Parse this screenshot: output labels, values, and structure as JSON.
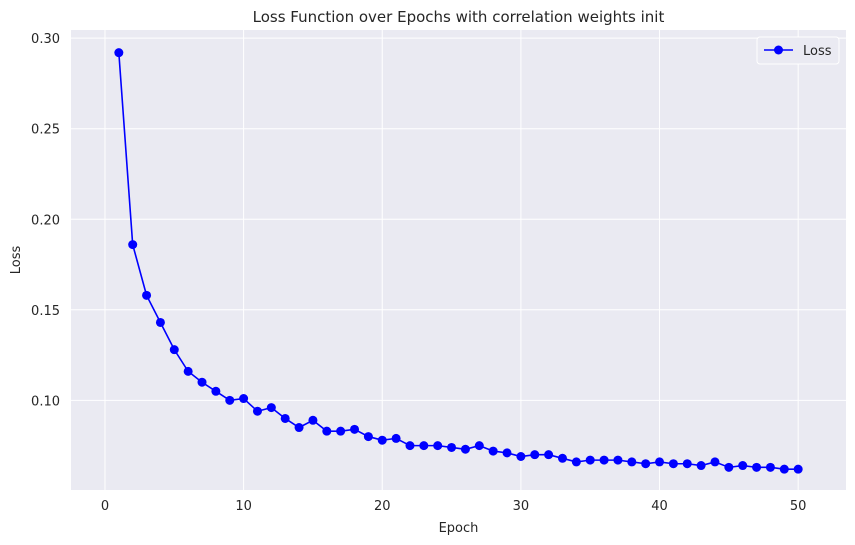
{
  "chart_data": {
    "type": "line",
    "title": "Loss Function over Epochs with correlation weights init",
    "xlabel": "Epoch",
    "ylabel": "Loss",
    "xlim": [
      -2.45,
      53.45
    ],
    "ylim": [
      0.0505,
      0.3045
    ],
    "xticks": [
      0,
      10,
      20,
      30,
      40,
      50
    ],
    "yticks": [
      0.1,
      0.15,
      0.2,
      0.25,
      0.3
    ],
    "ytick_labels": [
      "0.10",
      "0.15",
      "0.20",
      "0.25",
      "0.30"
    ],
    "grid": true,
    "legend_position": "top-right",
    "colors": {
      "line": "#0000ff",
      "background": "#eaeaf2",
      "grid": "#ffffff"
    },
    "series": [
      {
        "name": "Loss",
        "marker": "circle",
        "x": [
          1,
          2,
          3,
          4,
          5,
          6,
          7,
          8,
          9,
          10,
          11,
          12,
          13,
          14,
          15,
          16,
          17,
          18,
          19,
          20,
          21,
          22,
          23,
          24,
          25,
          26,
          27,
          28,
          29,
          30,
          31,
          32,
          33,
          34,
          35,
          36,
          37,
          38,
          39,
          40,
          41,
          42,
          43,
          44,
          45,
          46,
          47,
          48,
          49,
          50
        ],
        "values": [
          0.292,
          0.186,
          0.158,
          0.143,
          0.128,
          0.116,
          0.11,
          0.105,
          0.1,
          0.101,
          0.094,
          0.096,
          0.09,
          0.085,
          0.089,
          0.083,
          0.083,
          0.084,
          0.08,
          0.078,
          0.079,
          0.075,
          0.075,
          0.075,
          0.074,
          0.073,
          0.075,
          0.072,
          0.071,
          0.069,
          0.07,
          0.07,
          0.068,
          0.066,
          0.067,
          0.067,
          0.067,
          0.066,
          0.065,
          0.066,
          0.065,
          0.065,
          0.064,
          0.066,
          0.063,
          0.064,
          0.063,
          0.063,
          0.062,
          0.062
        ]
      }
    ]
  }
}
